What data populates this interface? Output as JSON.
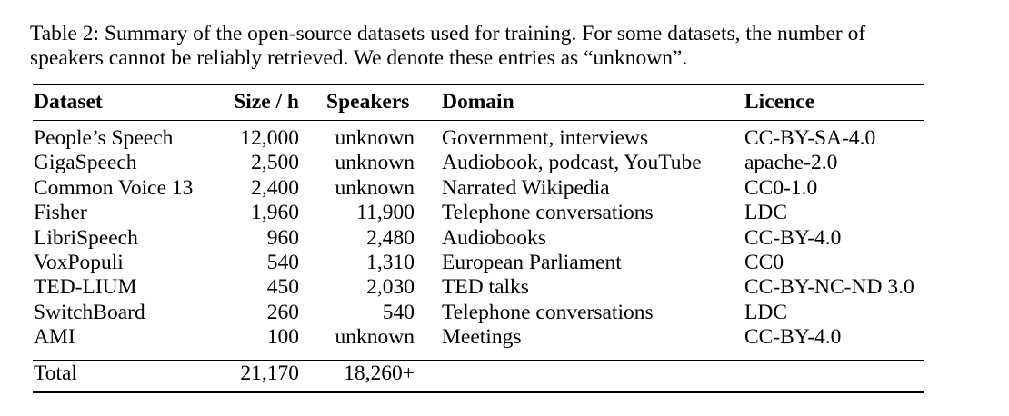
{
  "caption": {
    "line1": "Table 2: Summary of the open-source datasets used for training. For some datasets, the number of",
    "line2": "speakers cannot be reliably retrieved. We denote these entries as “unknown”."
  },
  "table": {
    "headers": {
      "dataset": "Dataset",
      "size": "Size / h",
      "speakers": "Speakers",
      "domain": "Domain",
      "licence": "Licence"
    },
    "rows": [
      {
        "dataset": "People’s Speech",
        "size": "12,000",
        "speakers": "unknown",
        "domain": "Government, interviews",
        "licence": "CC-BY-SA-4.0"
      },
      {
        "dataset": "GigaSpeech",
        "size": "2,500",
        "speakers": "unknown",
        "domain": "Audiobook, podcast, YouTube",
        "licence": "apache-2.0"
      },
      {
        "dataset": "Common Voice 13",
        "size": "2,400",
        "speakers": "unknown",
        "domain": "Narrated Wikipedia",
        "licence": "CC0-1.0"
      },
      {
        "dataset": "Fisher",
        "size": "1,960",
        "speakers": "11,900",
        "domain": "Telephone conversations",
        "licence": "LDC"
      },
      {
        "dataset": "LibriSpeech",
        "size": "960",
        "speakers": "2,480",
        "domain": "Audiobooks",
        "licence": "CC-BY-4.0"
      },
      {
        "dataset": "VoxPopuli",
        "size": "540",
        "speakers": "1,310",
        "domain": "European Parliament",
        "licence": "CC0"
      },
      {
        "dataset": "TED-LIUM",
        "size": "450",
        "speakers": "2,030",
        "domain": "TED talks",
        "licence": "CC-BY-NC-ND 3.0"
      },
      {
        "dataset": "SwitchBoard",
        "size": "260",
        "speakers": "540",
        "domain": "Telephone conversations",
        "licence": "LDC"
      },
      {
        "dataset": "AMI",
        "size": "100",
        "speakers": "unknown",
        "domain": "Meetings",
        "licence": "CC-BY-4.0"
      }
    ],
    "total": {
      "label": "Total",
      "size": "21,170",
      "speakers": "18,260+"
    }
  }
}
